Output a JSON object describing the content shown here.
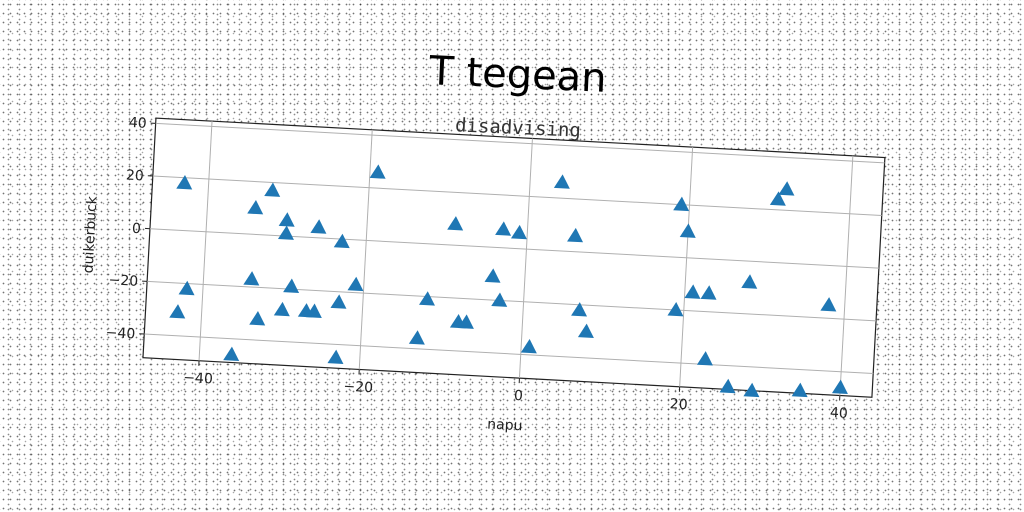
{
  "chart_data": {
    "type": "scatter",
    "title": "T tegean",
    "subtitle": "disadvising",
    "xlabel": "napu",
    "ylabel": "duikerbuck",
    "xlim": [
      -47,
      44
    ],
    "ylim": [
      -49,
      42
    ],
    "xticks": [
      -40,
      -20,
      0,
      20,
      40
    ],
    "yticks": [
      -40,
      -20,
      0,
      20,
      40
    ],
    "grid": true,
    "marker": "triangle",
    "color": "#1f77b4",
    "x": [
      -43,
      -42,
      -43,
      -36,
      -34,
      -34,
      -33,
      -32,
      -30,
      -30,
      -30,
      -29,
      -27,
      -26,
      -26,
      -23,
      -23,
      -23,
      -21,
      -19,
      -13,
      -12,
      -9,
      -8,
      -7,
      -4,
      -3,
      -3,
      -1,
      1,
      4,
      6,
      7,
      8,
      19,
      19,
      20,
      21,
      23,
      23,
      26,
      28,
      29,
      31,
      32,
      35,
      38,
      40
    ],
    "y": [
      18,
      -22,
      -31,
      -46,
      -17,
      10,
      -32,
      17,
      6,
      1,
      -28,
      -19,
      -28,
      4,
      -28,
      -1,
      -24,
      -45,
      -17,
      26,
      -36,
      -21,
      8,
      -29,
      -29,
      -11,
      7,
      -20,
      6,
      -37,
      26,
      6,
      -22,
      -30,
      20,
      -20,
      10,
      -13,
      -13,
      -38,
      -48,
      -8,
      -49,
      24,
      28,
      -48,
      -15,
      -46
    ]
  }
}
